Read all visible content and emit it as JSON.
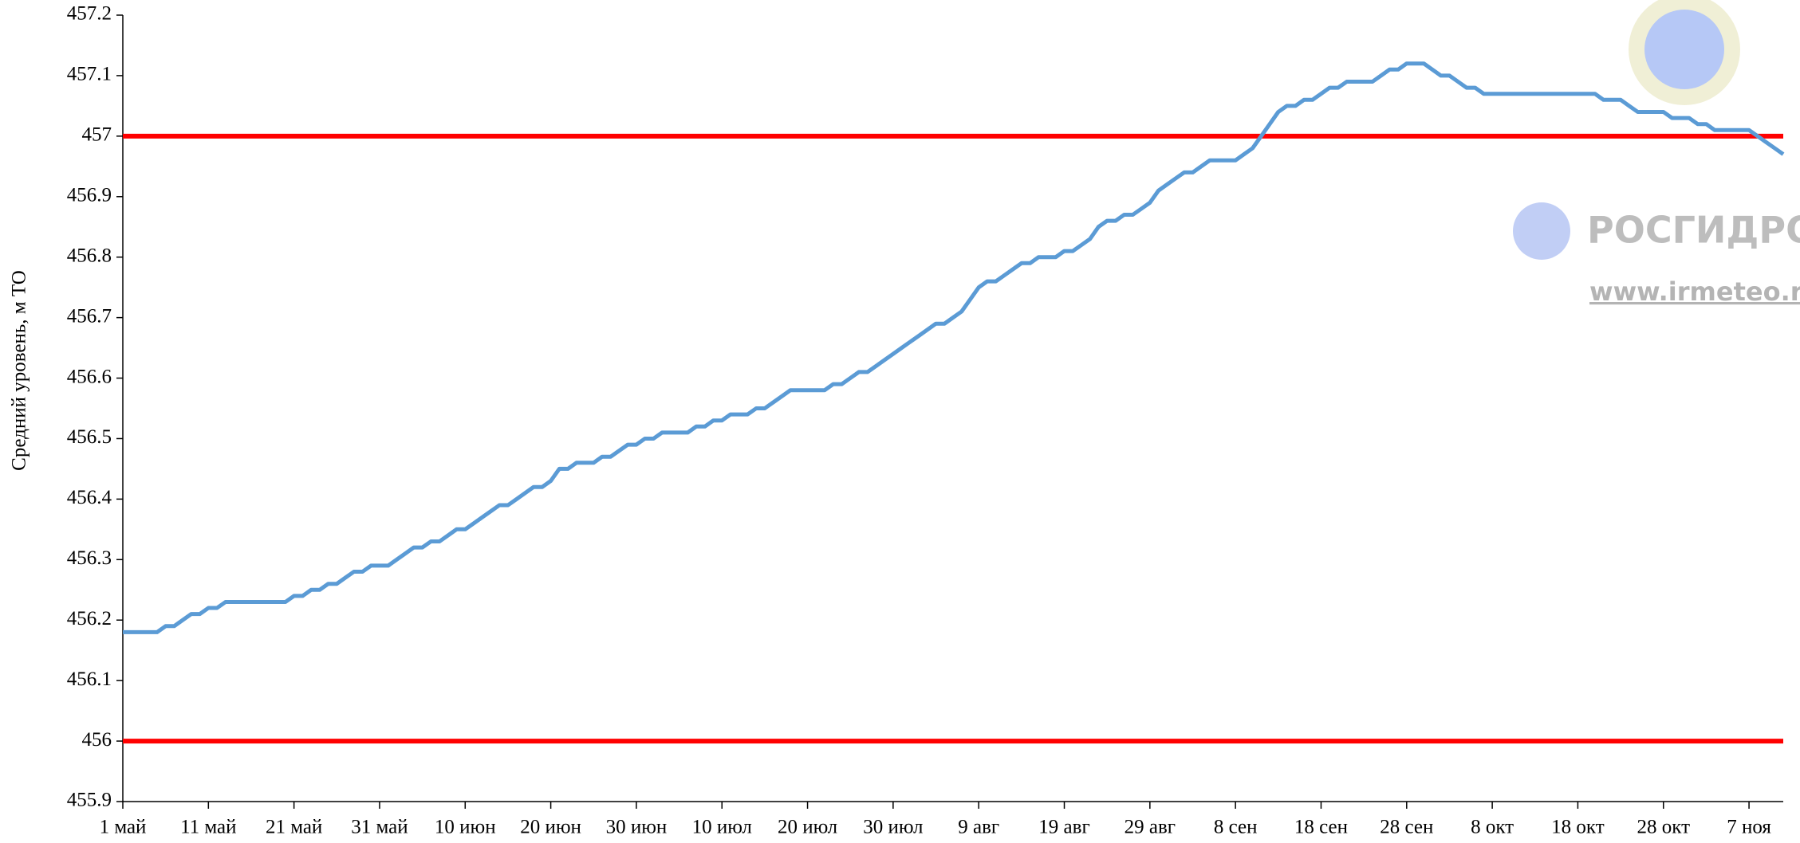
{
  "chart_data": {
    "type": "line",
    "y_label": "Средний уровень, м ТО",
    "categories": [
      "1 май",
      null,
      null,
      null,
      null,
      null,
      null,
      null,
      null,
      null,
      "11 май",
      null,
      null,
      null,
      null,
      null,
      null,
      null,
      null,
      null,
      "21 май",
      null,
      null,
      null,
      null,
      null,
      null,
      null,
      null,
      null,
      "31 май",
      null,
      null,
      null,
      null,
      null,
      null,
      null,
      null,
      null,
      "10 июн",
      null,
      null,
      null,
      null,
      null,
      null,
      null,
      null,
      null,
      "20 июн",
      null,
      null,
      null,
      null,
      null,
      null,
      null,
      null,
      null,
      "30 июн",
      null,
      null,
      null,
      null,
      null,
      null,
      null,
      null,
      null,
      "10 июл",
      null,
      null,
      null,
      null,
      null,
      null,
      null,
      null,
      null,
      "20 июл",
      null,
      null,
      null,
      null,
      null,
      null,
      null,
      null,
      null,
      "30 июл",
      null,
      null,
      null,
      null,
      null,
      null,
      null,
      null,
      null,
      "9 авг",
      null,
      null,
      null,
      null,
      null,
      null,
      null,
      null,
      null,
      "19 авг",
      null,
      null,
      null,
      null,
      null,
      null,
      null,
      null,
      null,
      "29 авг",
      null,
      null,
      null,
      null,
      null,
      null,
      null,
      null,
      null,
      "8 сен",
      null,
      null,
      null,
      null,
      null,
      null,
      null,
      null,
      null,
      "18 сен",
      null,
      null,
      null,
      null,
      null,
      null,
      null,
      null,
      null,
      "28 сен",
      null,
      null,
      null,
      null,
      null,
      null,
      null,
      null,
      null,
      "8 окт",
      null,
      null,
      null,
      null,
      null,
      null,
      null,
      null,
      null,
      "18 окт",
      null,
      null,
      null,
      null,
      null,
      null,
      null,
      null,
      null,
      "28 окт",
      null,
      null,
      null,
      null,
      null,
      null,
      null,
      null,
      null,
      "7 ноя",
      null,
      null,
      null,
      null
    ],
    "series": [
      {
        "color": "#5b9bd5",
        "values": [
          456.18,
          456.18,
          456.18,
          456.18,
          456.18,
          456.19,
          456.19,
          456.2,
          456.21,
          456.21,
          456.22,
          456.22,
          456.23,
          456.23,
          456.23,
          456.23,
          456.23,
          456.23,
          456.23,
          456.23,
          456.24,
          456.24,
          456.25,
          456.25,
          456.26,
          456.26,
          456.27,
          456.28,
          456.28,
          456.29,
          456.29,
          456.29,
          456.3,
          456.31,
          456.32,
          456.32,
          456.33,
          456.33,
          456.34,
          456.35,
          456.35,
          456.36,
          456.37,
          456.38,
          456.39,
          456.39,
          456.4,
          456.41,
          456.42,
          456.42,
          456.43,
          456.45,
          456.45,
          456.46,
          456.46,
          456.46,
          456.47,
          456.47,
          456.48,
          456.49,
          456.49,
          456.5,
          456.5,
          456.51,
          456.51,
          456.51,
          456.51,
          456.52,
          456.52,
          456.53,
          456.53,
          456.54,
          456.54,
          456.54,
          456.55,
          456.55,
          456.56,
          456.57,
          456.58,
          456.58,
          456.58,
          456.58,
          456.58,
          456.59,
          456.59,
          456.6,
          456.61,
          456.61,
          456.62,
          456.63,
          456.64,
          456.65,
          456.66,
          456.67,
          456.68,
          456.69,
          456.69,
          456.7,
          456.71,
          456.73,
          456.75,
          456.76,
          456.76,
          456.77,
          456.78,
          456.79,
          456.79,
          456.8,
          456.8,
          456.8,
          456.81,
          456.81,
          456.82,
          456.83,
          456.85,
          456.86,
          456.86,
          456.87,
          456.87,
          456.88,
          456.89,
          456.91,
          456.92,
          456.93,
          456.94,
          456.94,
          456.95,
          456.96,
          456.96,
          456.96,
          456.96,
          456.97,
          456.98,
          457.0,
          457.02,
          457.04,
          457.05,
          457.05,
          457.06,
          457.06,
          457.07,
          457.08,
          457.08,
          457.09,
          457.09,
          457.09,
          457.09,
          457.1,
          457.11,
          457.11,
          457.12,
          457.12,
          457.12,
          457.11,
          457.1,
          457.1,
          457.09,
          457.08,
          457.08,
          457.07,
          457.07,
          457.07,
          457.07,
          457.07,
          457.07,
          457.07,
          457.07,
          457.07,
          457.07,
          457.07,
          457.07,
          457.07,
          457.07,
          457.06,
          457.06,
          457.06,
          457.05,
          457.04,
          457.04,
          457.04,
          457.04,
          457.03,
          457.03,
          457.03,
          457.02,
          457.02,
          457.01,
          457.01,
          457.01,
          457.01,
          457.01,
          457.0,
          456.99,
          456.98,
          456.97
        ]
      }
    ],
    "reference_lines": [
      {
        "value": 457,
        "color": "#ff0000"
      },
      {
        "value": 456,
        "color": "#ff0000"
      }
    ],
    "ylim": [
      455.9,
      457.2
    ],
    "yticks": [
      455.9,
      456,
      456.1,
      456.2,
      456.3,
      456.4,
      456.5,
      456.6,
      456.7,
      456.8,
      456.9,
      457,
      457.1,
      457.2
    ],
    "grid": false,
    "watermark": {
      "title": "РОСГИДРОМ",
      "url": "www.irmeteo.ru"
    }
  }
}
